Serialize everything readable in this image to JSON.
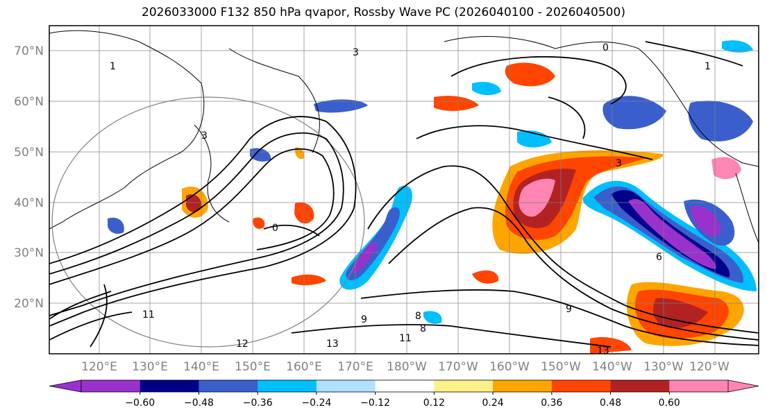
{
  "title": "2026033000 F132 850 hPa qvapor, Rossby Wave PC (2026040100 - 2026040500)",
  "map": {
    "lat_ticks": [
      "70°N",
      "60°N",
      "50°N",
      "40°N",
      "30°N",
      "20°N"
    ],
    "lon_ticks": [
      "120°E",
      "130°E",
      "140°E",
      "150°E",
      "160°E",
      "170°E",
      "180°W",
      "170°W",
      "160°W",
      "150°W",
      "140°W",
      "130°W",
      "120°W"
    ],
    "contour_labels": [
      "0",
      "1",
      "3",
      "0",
      "1",
      "3",
      "6",
      "9",
      "8",
      "8",
      "9",
      "11",
      "12",
      "13",
      "13",
      "11",
      "3"
    ],
    "grid": true
  },
  "colorbar": {
    "colors": [
      "#9932cc",
      "#00008b",
      "#3a5fcd",
      "#00bfff",
      "#b0e2ff",
      "#ffffff",
      "#fff08a",
      "#ffa500",
      "#ff4500",
      "#b22222",
      "#ff85b3"
    ],
    "tick_labels": [
      "−0.60",
      "−0.48",
      "−0.36",
      "−0.24",
      "−0.12",
      "0.12",
      "0.24",
      "0.36",
      "0.48",
      "0.60"
    ],
    "extend": "both"
  }
}
